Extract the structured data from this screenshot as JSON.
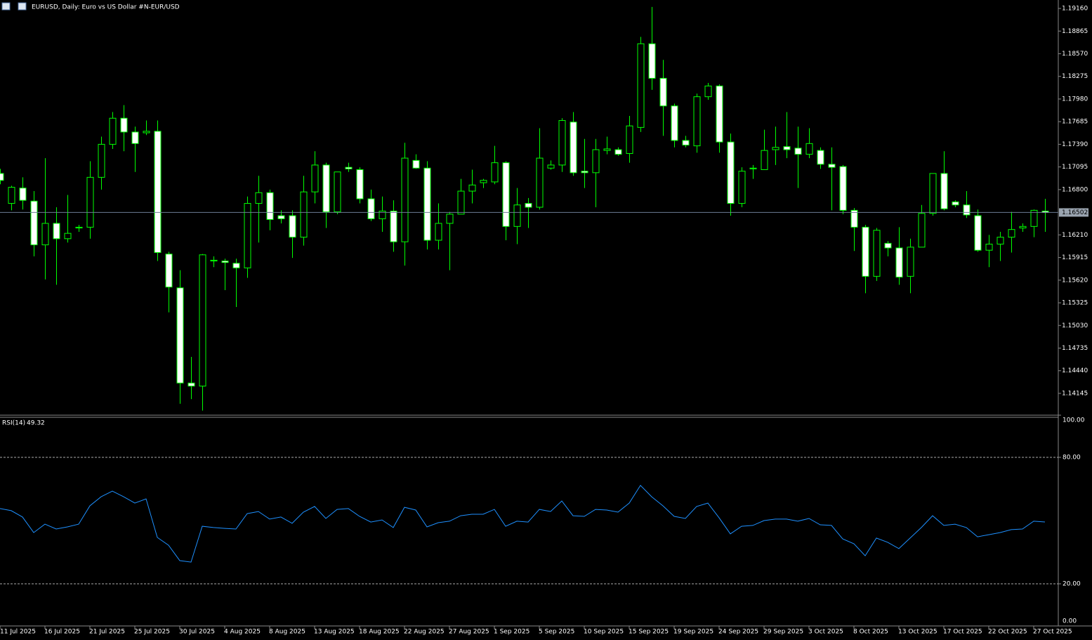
{
  "chart_data": [
    {
      "type": "candlestick",
      "title": "EURUSD, Daily:  Euro vs US Dollar #N-EUR/USD",
      "categories": [
        "11 Jul 2025",
        null,
        null,
        null,
        "16 Jul 2025",
        null,
        null,
        null,
        "21 Jul 2025",
        null,
        null,
        null,
        "25 Jul 2025",
        null,
        null,
        null,
        "30 Jul 2025",
        null,
        null,
        null,
        "4 Aug 2025",
        null,
        null,
        null,
        "8 Aug 2025",
        null,
        null,
        null,
        "13 Aug 2025",
        null,
        null,
        null,
        "18 Aug 2025",
        null,
        null,
        null,
        "22 Aug 2025",
        null,
        null,
        null,
        "27 Aug 2025",
        null,
        null,
        null,
        "1 Sep 2025",
        null,
        null,
        null,
        "5 Sep 2025",
        null,
        null,
        null,
        "10 Sep 2025",
        null,
        null,
        null,
        "15 Sep 2025",
        null,
        null,
        null,
        "19 Sep 2025",
        null,
        null,
        null,
        "24 Sep 2025",
        null,
        null,
        null,
        "29 Sep 2025",
        null,
        null,
        null,
        "3 Oct 2025",
        null,
        null,
        null,
        "8 Oct 2025",
        null,
        null,
        null,
        "13 Oct 2025",
        null,
        null,
        null,
        "17 Oct 2025",
        null,
        null,
        null,
        "22 Oct 2025",
        null,
        null,
        null,
        "27 Oct 2025",
        null
      ],
      "open": [
        1.1701,
        1.1662,
        1.1682,
        1.1665,
        1.1608,
        1.1636,
        1.1616,
        1.163,
        1.1631,
        1.1696,
        1.1739,
        1.1773,
        1.1755,
        1.1754,
        1.1756,
        1.1596,
        1.1552,
        1.1428,
        1.1424,
        1.1587,
        1.1587,
        1.1584,
        1.1578,
        1.1662,
        1.1676,
        1.1646,
        1.1646,
        1.1618,
        1.1677,
        1.1712,
        1.1651,
        1.1709,
        1.1706,
        1.1668,
        1.1642,
        1.1652,
        1.1612,
        1.1718,
        1.1708,
        1.1614,
        1.1636,
        1.1648,
        1.1678,
        1.1689,
        1.169,
        1.1715,
        1.1632,
        1.1662,
        1.1657,
        1.1708,
        1.1712,
        1.1768,
        1.1704,
        1.1702,
        1.1731,
        1.1732,
        1.1727,
        1.1761,
        1.187,
        1.1825,
        1.1789,
        1.1744,
        1.1737,
        1.1801,
        1.1815,
        1.1742,
        1.1662,
        1.1707,
        1.1706,
        1.1732,
        1.1736,
        1.1734,
        1.1726,
        1.1731,
        1.1713,
        1.171,
        1.1653,
        1.1631,
        1.1567,
        1.161,
        1.1604,
        1.1567,
        1.1605,
        1.1649,
        1.1701,
        1.1664,
        1.166,
        1.1646,
        1.1601,
        1.1609,
        1.1618,
        1.163,
        1.1632,
        1.1652
      ],
      "high": [
        1.1707,
        1.1685,
        1.1696,
        1.1678,
        1.1721,
        1.1657,
        1.1673,
        1.1634,
        1.1717,
        1.1749,
        1.1781,
        1.179,
        1.1762,
        1.177,
        1.177,
        1.1599,
        1.1575,
        1.1462,
        1.1596,
        1.1593,
        1.159,
        1.159,
        1.1671,
        1.1698,
        1.168,
        1.1653,
        1.1653,
        1.1698,
        1.173,
        1.1715,
        1.1703,
        1.1715,
        1.1709,
        1.168,
        1.1671,
        1.1666,
        1.1741,
        1.1726,
        1.1717,
        1.1662,
        1.1651,
        1.1694,
        1.1706,
        1.1694,
        1.1737,
        1.1717,
        1.1682,
        1.1669,
        1.176,
        1.1718,
        1.1773,
        1.1781,
        1.1746,
        1.1746,
        1.1749,
        1.1735,
        1.1776,
        1.1879,
        1.1918,
        1.1849,
        1.1792,
        1.175,
        1.1805,
        1.1819,
        1.1817,
        1.1753,
        1.1709,
        1.1712,
        1.1758,
        1.1762,
        1.1781,
        1.1762,
        1.176,
        1.1735,
        1.1735,
        1.1712,
        1.1656,
        1.1634,
        1.163,
        1.1613,
        1.1631,
        1.1616,
        1.166,
        1.1701,
        1.173,
        1.1666,
        1.1678,
        1.1654,
        1.1621,
        1.1625,
        1.1651,
        1.1636,
        1.1654,
        1.1668
      ],
      "low": [
        1.1687,
        1.1653,
        1.1654,
        1.1593,
        1.1563,
        1.1556,
        1.1611,
        1.1625,
        1.1616,
        1.168,
        1.1733,
        1.173,
        1.1703,
        1.1751,
        1.1587,
        1.152,
        1.1401,
        1.1407,
        1.1392,
        1.1579,
        1.1549,
        1.1527,
        1.1565,
        1.1611,
        1.1627,
        1.1636,
        1.1591,
        1.1607,
        1.1662,
        1.163,
        1.1648,
        1.1703,
        1.1662,
        1.1639,
        1.1625,
        1.1599,
        1.1581,
        1.1707,
        1.1602,
        1.1602,
        1.1575,
        1.1648,
        1.1662,
        1.1682,
        1.1687,
        1.1614,
        1.1609,
        1.163,
        1.1654,
        1.1706,
        1.1703,
        1.1698,
        1.1682,
        1.1657,
        1.1726,
        1.1724,
        1.1715,
        1.1755,
        1.181,
        1.175,
        1.1735,
        1.1735,
        1.1728,
        1.1797,
        1.1728,
        1.1646,
        1.1657,
        1.1694,
        1.1706,
        1.1712,
        1.1721,
        1.1682,
        1.1721,
        1.1707,
        1.1653,
        1.1648,
        1.16,
        1.1545,
        1.1561,
        1.1593,
        1.1556,
        1.1545,
        1.1605,
        1.1646,
        1.1653,
        1.1657,
        1.1643,
        1.1599,
        1.1579,
        1.1587,
        1.1598,
        1.1625,
        1.1618,
        1.1625
      ],
      "close": [
        1.1692,
        1.1683,
        1.1666,
        1.1608,
        1.1636,
        1.1616,
        1.1623,
        1.1631,
        1.1696,
        1.1739,
        1.1773,
        1.1755,
        1.174,
        1.1756,
        1.1598,
        1.1553,
        1.1428,
        1.1424,
        1.1595,
        1.1588,
        1.1585,
        1.1578,
        1.1662,
        1.1676,
        1.1641,
        1.1642,
        1.1618,
        1.1677,
        1.1712,
        1.1651,
        1.1703,
        1.1707,
        1.1668,
        1.1642,
        1.1652,
        1.1612,
        1.1721,
        1.1708,
        1.1614,
        1.1636,
        1.1648,
        1.1678,
        1.1686,
        1.1692,
        1.1715,
        1.1632,
        1.166,
        1.1657,
        1.1721,
        1.1712,
        1.177,
        1.1702,
        1.1702,
        1.1732,
        1.1733,
        1.1726,
        1.1763,
        1.187,
        1.1825,
        1.1789,
        1.1744,
        1.1738,
        1.1801,
        1.1815,
        1.1742,
        1.1662,
        1.1704,
        1.1708,
        1.1731,
        1.1735,
        1.1732,
        1.1726,
        1.174,
        1.1713,
        1.1709,
        1.1653,
        1.1631,
        1.1567,
        1.1627,
        1.1604,
        1.1566,
        1.1605,
        1.1649,
        1.1701,
        1.1655,
        1.166,
        1.1647,
        1.1601,
        1.1609,
        1.1618,
        1.1628,
        1.1632,
        1.1653,
        1.16502
      ],
      "up_color": "#000000",
      "down_color": "#ffffff",
      "outline_color": "#00ff00",
      "price_line_color": "#6b7b94",
      "ylim": [
        1.1387,
        1.1927
      ],
      "yticks": [
        {
          "value": 1.1916,
          "label": "1.19160"
        },
        {
          "value": 1.18865,
          "label": "1.18865"
        },
        {
          "value": 1.1857,
          "label": "1.18570"
        },
        {
          "value": 1.18275,
          "label": "1.18275"
        },
        {
          "value": 1.1798,
          "label": "1.17980"
        },
        {
          "value": 1.17685,
          "label": "1.17685"
        },
        {
          "value": 1.1739,
          "label": "1.17390"
        },
        {
          "value": 1.17095,
          "label": "1.17095"
        },
        {
          "value": 1.168,
          "label": "1.16800"
        },
        {
          "value": 1.1621,
          "label": "1.16210"
        },
        {
          "value": 1.15915,
          "label": "1.15915"
        },
        {
          "value": 1.1562,
          "label": "1.15620"
        },
        {
          "value": 1.15325,
          "label": "1.15325"
        },
        {
          "value": 1.1503,
          "label": "1.15030"
        },
        {
          "value": 1.14735,
          "label": "1.14735"
        },
        {
          "value": 1.1444,
          "label": "1.14440"
        },
        {
          "value": 1.14145,
          "label": "1.14145"
        }
      ]
    },
    {
      "type": "line",
      "title": "RSI(14)",
      "color": "#1e90ff",
      "values": [
        55.7,
        54.7,
        51.7,
        44.3,
        48.3,
        46,
        47,
        48.3,
        57,
        61.3,
        64,
        61.3,
        58.3,
        60.3,
        42,
        38.3,
        31,
        30.3,
        47.3,
        46.7,
        46.3,
        46,
        53.3,
        54.3,
        50.7,
        51.7,
        48.7,
        54,
        56.7,
        51,
        55.3,
        55.7,
        52,
        49.3,
        50.3,
        46.7,
        56.3,
        55,
        47,
        49,
        49.7,
        52.3,
        53,
        53,
        55.3,
        47.3,
        49.7,
        49.3,
        55.3,
        54.3,
        59.3,
        52.3,
        52,
        55.3,
        55,
        54,
        58.3,
        66.7,
        61.3,
        57,
        52,
        51,
        56.7,
        58.3,
        51.3,
        43.7,
        47.3,
        47.7,
        50,
        50.7,
        50.7,
        49.7,
        51,
        48,
        47.7,
        41.3,
        39,
        33.3,
        41.7,
        39.7,
        36.7,
        41.7,
        46.7,
        52.3,
        47.7,
        48.3,
        46.7,
        42.3,
        43.3,
        44.3,
        45.7,
        46,
        49.7,
        49.32
      ],
      "ylim": [
        0,
        100
      ],
      "yticks": [
        {
          "value": 100,
          "label": "100.00"
        },
        {
          "value": 80,
          "label": "80.00"
        },
        {
          "value": 20,
          "label": "20.00"
        },
        {
          "value": 0,
          "label": "0.00"
        }
      ],
      "levels": [
        80,
        20
      ]
    }
  ]
}
